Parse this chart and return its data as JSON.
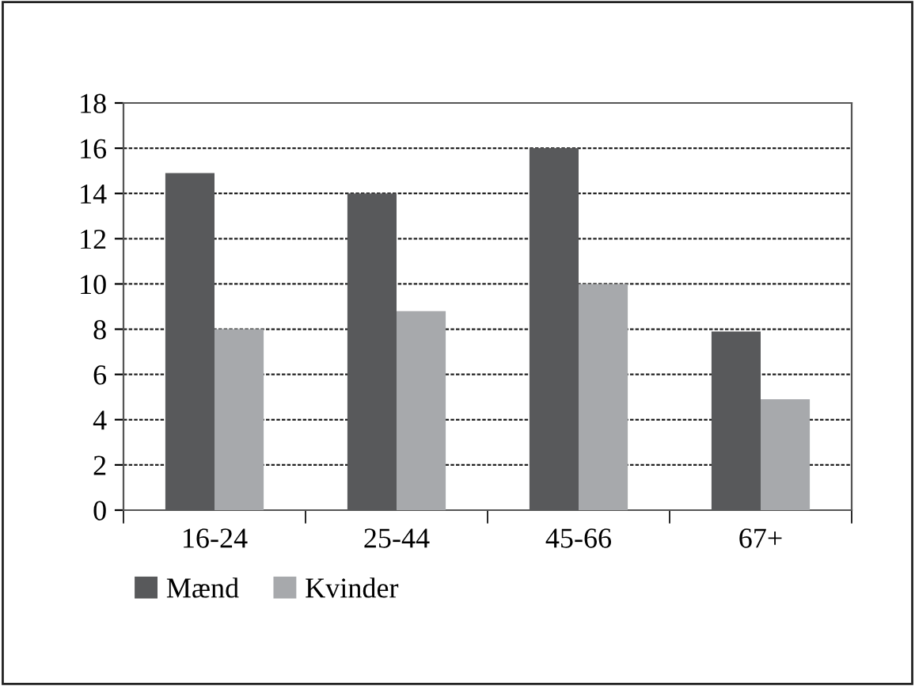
{
  "chart_data": {
    "type": "bar",
    "categories": [
      "16-24",
      "25-44",
      "45-66",
      "67+"
    ],
    "series": [
      {
        "name": "Mænd",
        "color": "#58595b",
        "values": [
          14.9,
          14.0,
          16.0,
          7.9
        ]
      },
      {
        "name": "Kvinder",
        "color": "#a7a9ac",
        "values": [
          8.0,
          8.8,
          10.0,
          4.9
        ]
      }
    ],
    "ylim": [
      0,
      18
    ],
    "yticks": [
      0,
      2,
      4,
      6,
      8,
      10,
      12,
      14,
      16,
      18
    ],
    "grid": "y",
    "legend": "bottom"
  }
}
